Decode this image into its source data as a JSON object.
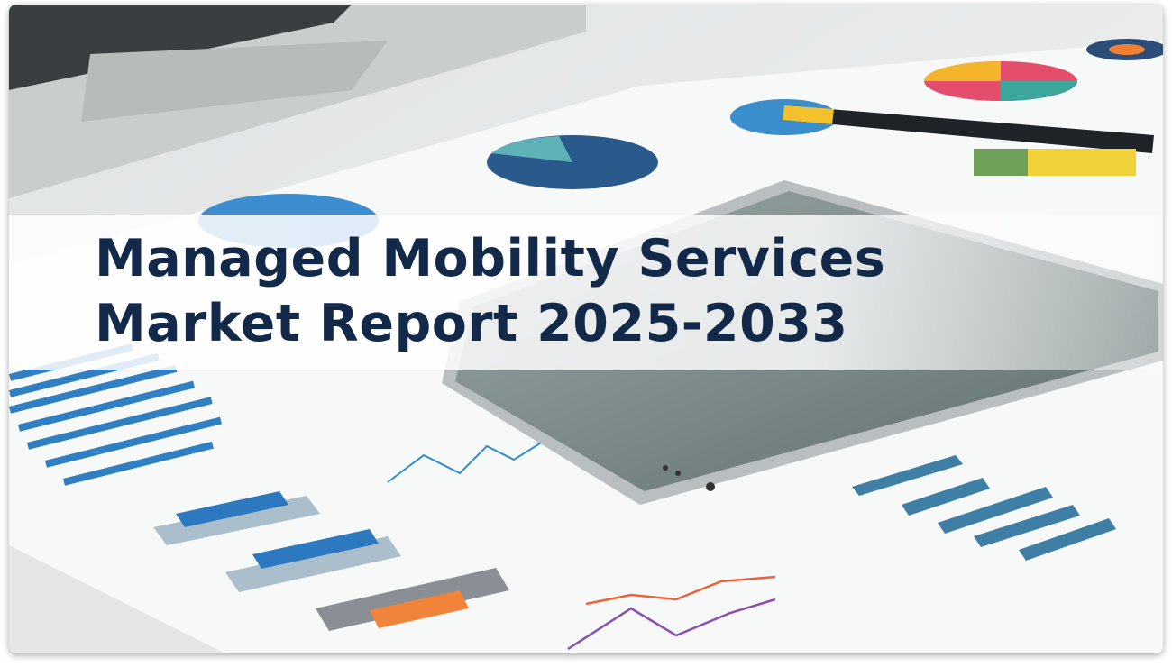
{
  "banner": {
    "title_line1": "Managed Mobility Services",
    "title_line2": "Market Report 2025-2033",
    "title_color": "#13294a"
  },
  "background": {
    "description_icons": [
      "laptop-image",
      "tablet-image",
      "pen-image",
      "chart-papers-image"
    ]
  }
}
